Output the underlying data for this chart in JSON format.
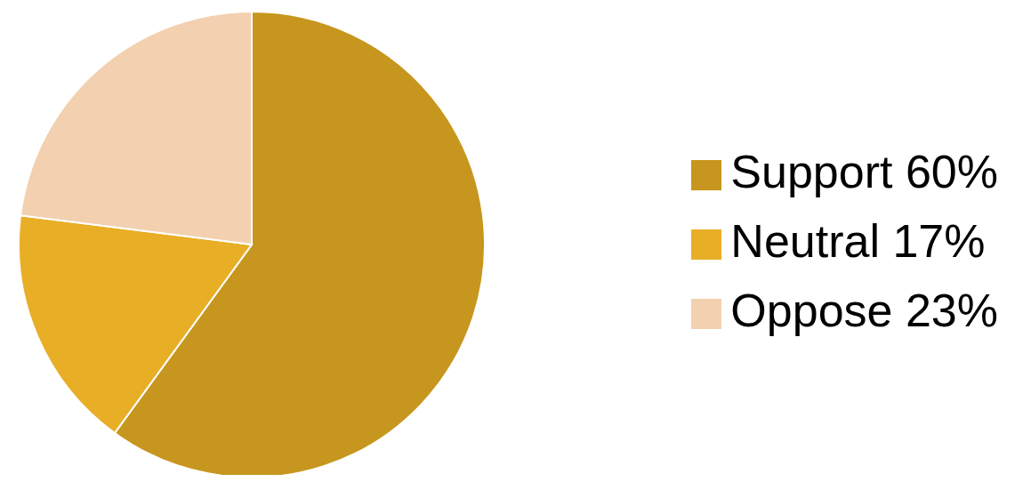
{
  "chart_data": {
    "type": "pie",
    "categories": [
      "Support 60%",
      "Neutral 17%",
      "Oppose 23%"
    ],
    "values": [
      60,
      17,
      23
    ],
    "colors": [
      "#c7961e",
      "#e8ae26",
      "#f2d0b0"
    ],
    "legend": "right"
  }
}
